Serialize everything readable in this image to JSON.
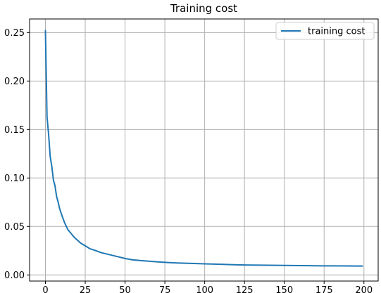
{
  "chart_data": {
    "type": "line",
    "title": "Training cost",
    "xlabel": "",
    "ylabel": "",
    "xlim": [
      -9.95,
      208.95
    ],
    "ylim": [
      -0.0063,
      0.264
    ],
    "grid": true,
    "legend_position": "top-right",
    "x_ticks": [
      0,
      25,
      50,
      75,
      100,
      125,
      150,
      175,
      200
    ],
    "x_tick_labels": [
      "0",
      "25",
      "50",
      "75",
      "100",
      "125",
      "150",
      "175",
      "200"
    ],
    "y_ticks": [
      0.0,
      0.05,
      0.1,
      0.15,
      0.2,
      0.25
    ],
    "y_tick_labels": [
      "0.00",
      "0.05",
      "0.10",
      "0.15",
      "0.20",
      "0.25"
    ],
    "series": [
      {
        "name": "training cost",
        "color": "#1f77b4",
        "x": [
          0,
          1,
          2,
          3,
          4,
          5,
          6,
          7,
          8,
          9,
          10,
          12,
          14,
          16,
          18,
          20,
          22,
          25,
          28,
          30,
          35,
          40,
          45,
          50,
          55,
          60,
          70,
          75,
          80,
          90,
          100,
          110,
          120,
          125,
          130,
          140,
          150,
          160,
          170,
          175,
          180,
          190,
          199
        ],
        "values": [
          0.252,
          0.163,
          0.145,
          0.122,
          0.112,
          0.098,
          0.092,
          0.081,
          0.075,
          0.068,
          0.063,
          0.054,
          0.047,
          0.043,
          0.039,
          0.036,
          0.033,
          0.03,
          0.027,
          0.026,
          0.023,
          0.021,
          0.019,
          0.017,
          0.0155,
          0.0148,
          0.0135,
          0.013,
          0.0125,
          0.012,
          0.0115,
          0.011,
          0.0105,
          0.0103,
          0.0102,
          0.01,
          0.0098,
          0.0096,
          0.0095,
          0.0094,
          0.0094,
          0.0093,
          0.0092
        ]
      }
    ]
  }
}
